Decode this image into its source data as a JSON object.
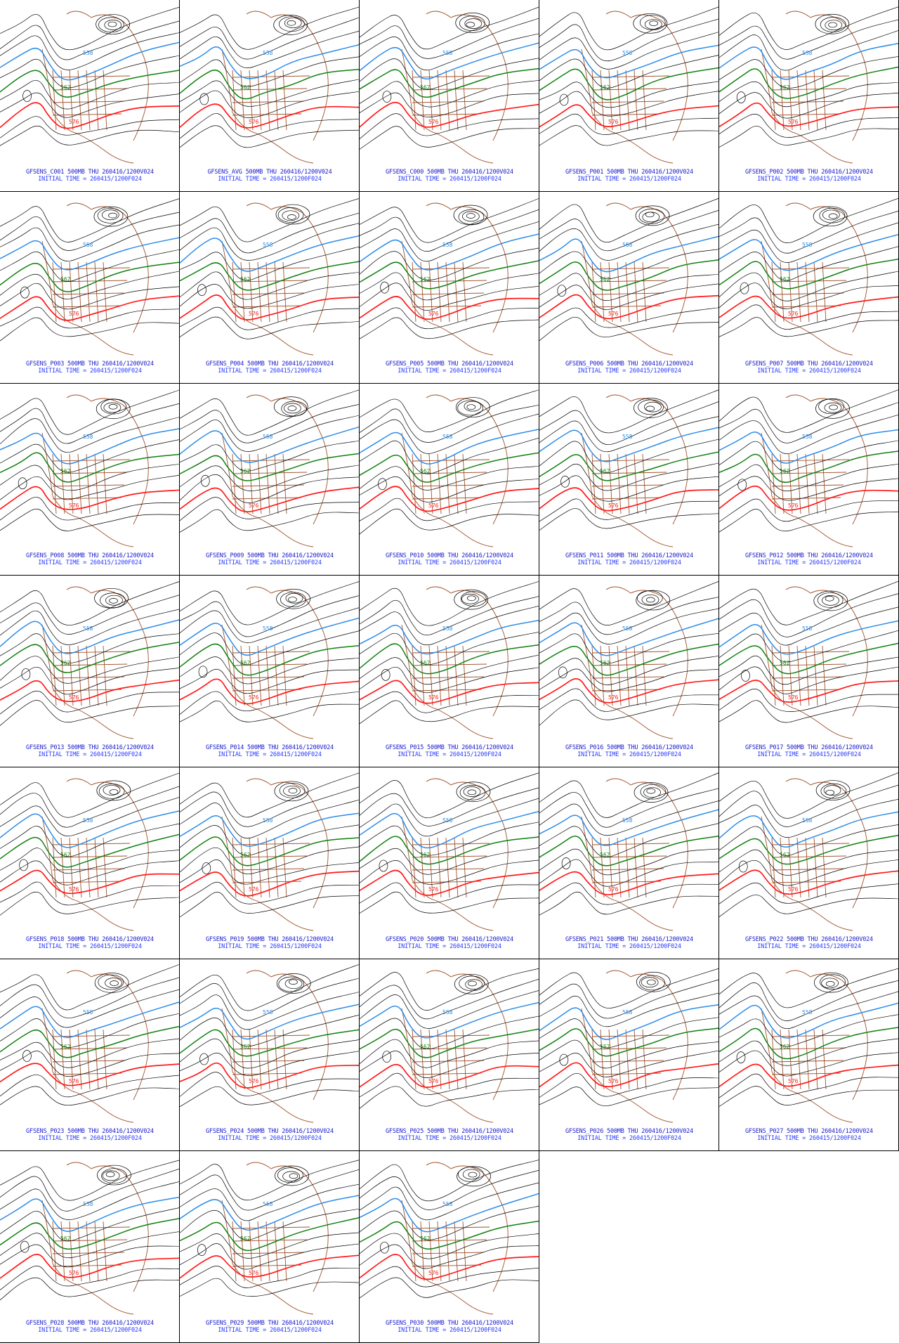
{
  "contour_labels": {
    "low": "558",
    "mid": "562",
    "high": "576"
  },
  "colors": {
    "contour": "#000000",
    "contour_558": "#2d8ce8",
    "contour_562": "#108010",
    "contour_576": "#ff1a1a",
    "geography": "#a0522d",
    "caption_line1": "#1a1acc",
    "caption_line2": "#2a3cff"
  },
  "icons": {
    "map": "contour-map-icon"
  },
  "panels": [
    {
      "line1": "GFSENS_C001 500MB THU 260416/1200V024",
      "line2": "INITIAL TIME = 260415/1200F024"
    },
    {
      "line1": "GFSENS_AVG 500MB THU 260416/1200V024",
      "line2": "INITIAL TIME = 260415/1200F024"
    },
    {
      "line1": "GFSENS_C000 500MB THU 260416/1200V024",
      "line2": "INITIAL TIME = 260415/1200F024"
    },
    {
      "line1": "GFSENS_P001 500MB THU 260416/1200V024",
      "line2": "INITIAL TIME = 260415/1200F024"
    },
    {
      "line1": "GFSENS_P002 500MB THU 260416/1200V024",
      "line2": "INITIAL TIME = 260415/1200F024"
    },
    {
      "line1": "GFSENS_P003 500MB THU 260416/1200V024",
      "line2": "INITIAL TIME = 260415/1200F024"
    },
    {
      "line1": "GFSENS_P004 500MB THU 260416/1200V024",
      "line2": "INITIAL TIME = 260415/1200F024"
    },
    {
      "line1": "GFSENS_P005 500MB THU 260416/1200V024",
      "line2": "INITIAL TIME = 260415/1200F024"
    },
    {
      "line1": "GFSENS_P006 500MB THU 260416/1200V024",
      "line2": "INITIAL TIME = 260415/1200F024"
    },
    {
      "line1": "GFSENS_P007 500MB THU 260416/1200V024",
      "line2": "INITIAL TIME = 260415/1200F024"
    },
    {
      "line1": "GFSENS_P008 500MB THU 260416/1200V024",
      "line2": "INITIAL TIME = 260415/1200F024"
    },
    {
      "line1": "GFSENS_P009 500MB THU 260416/1200V024",
      "line2": "INITIAL TIME = 260415/1200F024"
    },
    {
      "line1": "GFSENS_P010 500MB THU 260416/1200V024",
      "line2": "INITIAL TIME = 260415/1200F024"
    },
    {
      "line1": "GFSENS_P011 500MB THU 260416/1200V024",
      "line2": "INITIAL TIME = 260415/1200F024"
    },
    {
      "line1": "GFSENS_P012 500MB THU 260416/1200V024",
      "line2": "INITIAL TIME = 260415/1200F024"
    },
    {
      "line1": "GFSENS_P013 500MB THU 260416/1200V024",
      "line2": "INITIAL TIME = 260415/1200F024"
    },
    {
      "line1": "GFSENS_P014 500MB THU 260416/1200V024",
      "line2": "INITIAL TIME = 260415/1200F024"
    },
    {
      "line1": "GFSENS_P015 500MB THU 260416/1200V024",
      "line2": "INITIAL TIME = 260415/1200F024"
    },
    {
      "line1": "GFSENS_P016 500MB THU 260416/1200V024",
      "line2": "INITIAL TIME = 260415/1200F024"
    },
    {
      "line1": "GFSENS_P017 500MB THU 260416/1200V024",
      "line2": "INITIAL TIME = 260415/1200F024"
    },
    {
      "line1": "GFSENS_P018 500MB THU 260416/1200V024",
      "line2": "INITIAL TIME = 260415/1200F024"
    },
    {
      "line1": "GFSENS_P019 500MB THU 260416/1200V024",
      "line2": "INITIAL TIME = 260415/1200F024"
    },
    {
      "line1": "GFSENS_P020 500MB THU 260416/1200V024",
      "line2": "INITIAL TIME = 260415/1200F024"
    },
    {
      "line1": "GFSENS_P021 500MB THU 260416/1200V024",
      "line2": "INITIAL TIME = 260415/1200F024"
    },
    {
      "line1": "GFSENS_P022 500MB THU 260416/1200V024",
      "line2": "INITIAL TIME = 260415/1200F024"
    },
    {
      "line1": "GFSENS_P023 500MB THU 260416/1200V024",
      "line2": "INITIAL TIME = 260415/1200F024"
    },
    {
      "line1": "GFSENS_P024 500MB THU 260416/1200V024",
      "line2": "INITIAL TIME = 260415/1200F024"
    },
    {
      "line1": "GFSENS_P025 500MB THU 260416/1200V024",
      "line2": "INITIAL TIME = 260415/1200F024"
    },
    {
      "line1": "GFSENS_P026 500MB THU 260416/1200V024",
      "line2": "INITIAL TIME = 260415/1200F024"
    },
    {
      "line1": "GFSENS_P027 500MB THU 260416/1200V024",
      "line2": "INITIAL TIME = 260415/1200F024"
    },
    {
      "line1": "GFSENS_P028 500MB THU 260416/1200V024",
      "line2": "INITIAL TIME = 260415/1200F024"
    },
    {
      "line1": "GFSENS_P029 500MB THU 260416/1200V024",
      "line2": "INITIAL TIME = 260415/1200F024"
    },
    {
      "line1": "GFSENS_P030 500MB THU 260416/1200V024",
      "line2": "INITIAL TIME = 260415/1200F024"
    }
  ]
}
